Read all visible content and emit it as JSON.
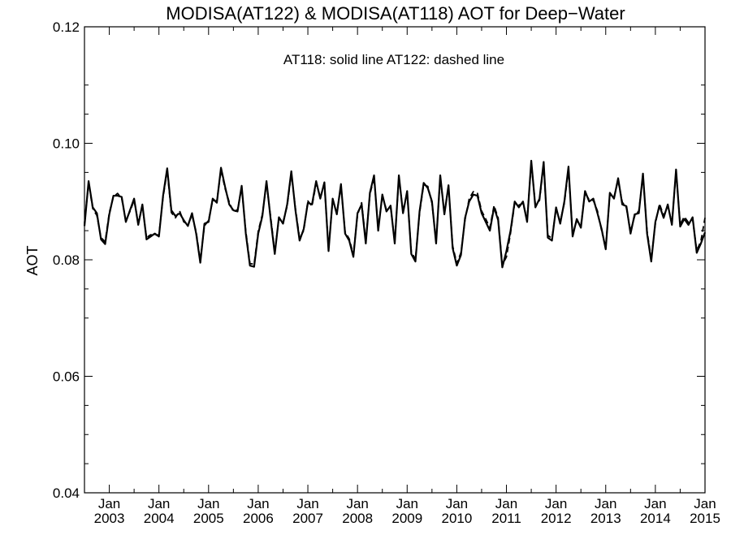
{
  "chart_data": {
    "type": "line",
    "title": "MODISA(AT122) & MODISA(AT118)  AOT for Deep−Water",
    "ylabel": "AOT",
    "xlabel": "",
    "annotation": "AT118: solid line   AT122: dashed line",
    "ylim": [
      0.04,
      0.12
    ],
    "xlim": [
      "2002-07",
      "2015-01"
    ],
    "grid": false,
    "y_ticks": [
      "0.04",
      "0.06",
      "0.08",
      "0.10",
      "0.12"
    ],
    "x_ticks": [
      {
        "month": "Jan",
        "year": "2003",
        "date": "2003-01"
      },
      {
        "month": "Jan",
        "year": "2004",
        "date": "2004-01"
      },
      {
        "month": "Jan",
        "year": "2005",
        "date": "2005-01"
      },
      {
        "month": "Jan",
        "year": "2006",
        "date": "2006-01"
      },
      {
        "month": "Jan",
        "year": "2007",
        "date": "2007-01"
      },
      {
        "month": "Jan",
        "year": "2008",
        "date": "2008-01"
      },
      {
        "month": "Jan",
        "year": "2009",
        "date": "2009-01"
      },
      {
        "month": "Jan",
        "year": "2010",
        "date": "2010-01"
      },
      {
        "month": "Jan",
        "year": "2011",
        "date": "2011-01"
      },
      {
        "month": "Jan",
        "year": "2012",
        "date": "2012-01"
      },
      {
        "month": "Jan",
        "year": "2013",
        "date": "2013-01"
      },
      {
        "month": "Jan",
        "year": "2014",
        "date": "2014-01"
      },
      {
        "month": "Jan",
        "year": "2015",
        "date": "2015-01"
      }
    ],
    "x": [
      "2002-07",
      "2002-08",
      "2002-09",
      "2002-10",
      "2002-11",
      "2002-12",
      "2003-01",
      "2003-02",
      "2003-03",
      "2003-04",
      "2003-05",
      "2003-06",
      "2003-07",
      "2003-08",
      "2003-09",
      "2003-10",
      "2003-11",
      "2003-12",
      "2004-01",
      "2004-02",
      "2004-03",
      "2004-04",
      "2004-05",
      "2004-06",
      "2004-07",
      "2004-08",
      "2004-09",
      "2004-10",
      "2004-11",
      "2004-12",
      "2005-01",
      "2005-02",
      "2005-03",
      "2005-04",
      "2005-05",
      "2005-06",
      "2005-07",
      "2005-08",
      "2005-09",
      "2005-10",
      "2005-11",
      "2005-12",
      "2006-01",
      "2006-02",
      "2006-03",
      "2006-04",
      "2006-05",
      "2006-06",
      "2006-07",
      "2006-08",
      "2006-09",
      "2006-10",
      "2006-11",
      "2006-12",
      "2007-01",
      "2007-02",
      "2007-03",
      "2007-04",
      "2007-05",
      "2007-06",
      "2007-07",
      "2007-08",
      "2007-09",
      "2007-10",
      "2007-11",
      "2007-12",
      "2008-01",
      "2008-02",
      "2008-03",
      "2008-04",
      "2008-05",
      "2008-06",
      "2008-07",
      "2008-08",
      "2008-09",
      "2008-10",
      "2008-11",
      "2008-12",
      "2009-01",
      "2009-02",
      "2009-03",
      "2009-04",
      "2009-05",
      "2009-06",
      "2009-07",
      "2009-08",
      "2009-09",
      "2009-10",
      "2009-11",
      "2009-12",
      "2010-01",
      "2010-02",
      "2010-03",
      "2010-04",
      "2010-05",
      "2010-06",
      "2010-07",
      "2010-08",
      "2010-09",
      "2010-10",
      "2010-11",
      "2010-12",
      "2011-01",
      "2011-02",
      "2011-03",
      "2011-04",
      "2011-05",
      "2011-06",
      "2011-07",
      "2011-08",
      "2011-09",
      "2011-10",
      "2011-11",
      "2011-12",
      "2012-01",
      "2012-02",
      "2012-03",
      "2012-04",
      "2012-05",
      "2012-06",
      "2012-07",
      "2012-08",
      "2012-09",
      "2012-10",
      "2012-11",
      "2012-12",
      "2013-01",
      "2013-02",
      "2013-03",
      "2013-04",
      "2013-05",
      "2013-06",
      "2013-07",
      "2013-08",
      "2013-09",
      "2013-10",
      "2013-11",
      "2013-12",
      "2014-01",
      "2014-02",
      "2014-03",
      "2014-04",
      "2014-05",
      "2014-06",
      "2014-07",
      "2014-08",
      "2014-09",
      "2014-10",
      "2014-11",
      "2014-12",
      "2015-01"
    ],
    "series": [
      {
        "name": "AT118",
        "style": "solid",
        "color": "#000000",
        "values": [
          0.0858,
          0.0935,
          0.089,
          0.088,
          0.0835,
          0.0827,
          0.0878,
          0.091,
          0.091,
          0.0908,
          0.0865,
          0.0885,
          0.0905,
          0.086,
          0.0895,
          0.0835,
          0.084,
          0.0845,
          0.084,
          0.091,
          0.0957,
          0.0885,
          0.0875,
          0.088,
          0.0868,
          0.0858,
          0.088,
          0.0845,
          0.0795,
          0.0862,
          0.0865,
          0.0905,
          0.0898,
          0.0958,
          0.0925,
          0.0895,
          0.0885,
          0.0883,
          0.0927,
          0.0845,
          0.079,
          0.0788,
          0.0845,
          0.0875,
          0.0935,
          0.087,
          0.081,
          0.0873,
          0.0862,
          0.0895,
          0.0952,
          0.0885,
          0.0833,
          0.0853,
          0.0898,
          0.0895,
          0.0935,
          0.0905,
          0.0933,
          0.0815,
          0.0905,
          0.0878,
          0.093,
          0.0845,
          0.0833,
          0.0805,
          0.088,
          0.0895,
          0.0828,
          0.0915,
          0.0945,
          0.085,
          0.0912,
          0.0883,
          0.0893,
          0.0828,
          0.0945,
          0.088,
          0.0918,
          0.081,
          0.0797,
          0.0883,
          0.0932,
          0.0923,
          0.09,
          0.0828,
          0.0945,
          0.0878,
          0.0928,
          0.082,
          0.079,
          0.0808,
          0.0872,
          0.09,
          0.0912,
          0.091,
          0.088,
          0.0865,
          0.085,
          0.089,
          0.0868,
          0.0787,
          0.0815,
          0.085,
          0.09,
          0.089,
          0.09,
          0.0865,
          0.097,
          0.089,
          0.0905,
          0.0968,
          0.0838,
          0.0833,
          0.089,
          0.0862,
          0.09,
          0.096,
          0.084,
          0.087,
          0.0855,
          0.0918,
          0.09,
          0.0905,
          0.088,
          0.0853,
          0.0818,
          0.0915,
          0.0905,
          0.094,
          0.0895,
          0.0892,
          0.0845,
          0.0878,
          0.088,
          0.0948,
          0.0845,
          0.0797,
          0.0865,
          0.0893,
          0.0872,
          0.0895,
          0.086,
          0.0955,
          0.0857,
          0.087,
          0.086,
          0.0873,
          0.0812,
          0.0828,
          0.0847
        ]
      },
      {
        "name": "AT122",
        "style": "dashed",
        "color": "#000000",
        "values": [
          0.0862,
          0.0932,
          0.0888,
          0.0876,
          0.0838,
          0.0831,
          0.0881,
          0.0908,
          0.0914,
          0.0905,
          0.0868,
          0.0883,
          0.0902,
          0.0864,
          0.0892,
          0.0838,
          0.0843,
          0.0842,
          0.0843,
          0.0907,
          0.0953,
          0.0881,
          0.0872,
          0.0884,
          0.0865,
          0.0861,
          0.0876,
          0.0848,
          0.0799,
          0.0858,
          0.0868,
          0.0902,
          0.0901,
          0.0954,
          0.0922,
          0.0899,
          0.0882,
          0.0886,
          0.0923,
          0.0849,
          0.0794,
          0.0792,
          0.0849,
          0.0878,
          0.0931,
          0.0874,
          0.0814,
          0.087,
          0.0865,
          0.0892,
          0.0948,
          0.0888,
          0.0837,
          0.085,
          0.0901,
          0.0892,
          0.0931,
          0.0908,
          0.0929,
          0.0819,
          0.0902,
          0.0881,
          0.0926,
          0.0848,
          0.0836,
          0.0809,
          0.0877,
          0.0898,
          0.0832,
          0.0912,
          0.0941,
          0.0854,
          0.0909,
          0.0886,
          0.089,
          0.0832,
          0.0941,
          0.0883,
          0.0915,
          0.0814,
          0.0801,
          0.088,
          0.0929,
          0.0926,
          0.0897,
          0.0832,
          0.0941,
          0.0881,
          0.0925,
          0.0824,
          0.0794,
          0.0812,
          0.0869,
          0.0905,
          0.0917,
          0.0914,
          0.0884,
          0.087,
          0.0855,
          0.0893,
          0.0872,
          0.0791,
          0.0805,
          0.0846,
          0.0897,
          0.0894,
          0.0897,
          0.0869,
          0.0966,
          0.0894,
          0.0902,
          0.0964,
          0.0842,
          0.0837,
          0.0887,
          0.0866,
          0.0897,
          0.0956,
          0.0844,
          0.0867,
          0.0859,
          0.0915,
          0.0903,
          0.0902,
          0.0884,
          0.085,
          0.0822,
          0.0912,
          0.0908,
          0.0936,
          0.0899,
          0.0889,
          0.0849,
          0.0875,
          0.0884,
          0.0944,
          0.0849,
          0.0801,
          0.0862,
          0.0896,
          0.0876,
          0.0892,
          0.0864,
          0.0951,
          0.0861,
          0.0874,
          0.0864,
          0.087,
          0.0816,
          0.0832,
          0.0872
        ]
      }
    ]
  }
}
